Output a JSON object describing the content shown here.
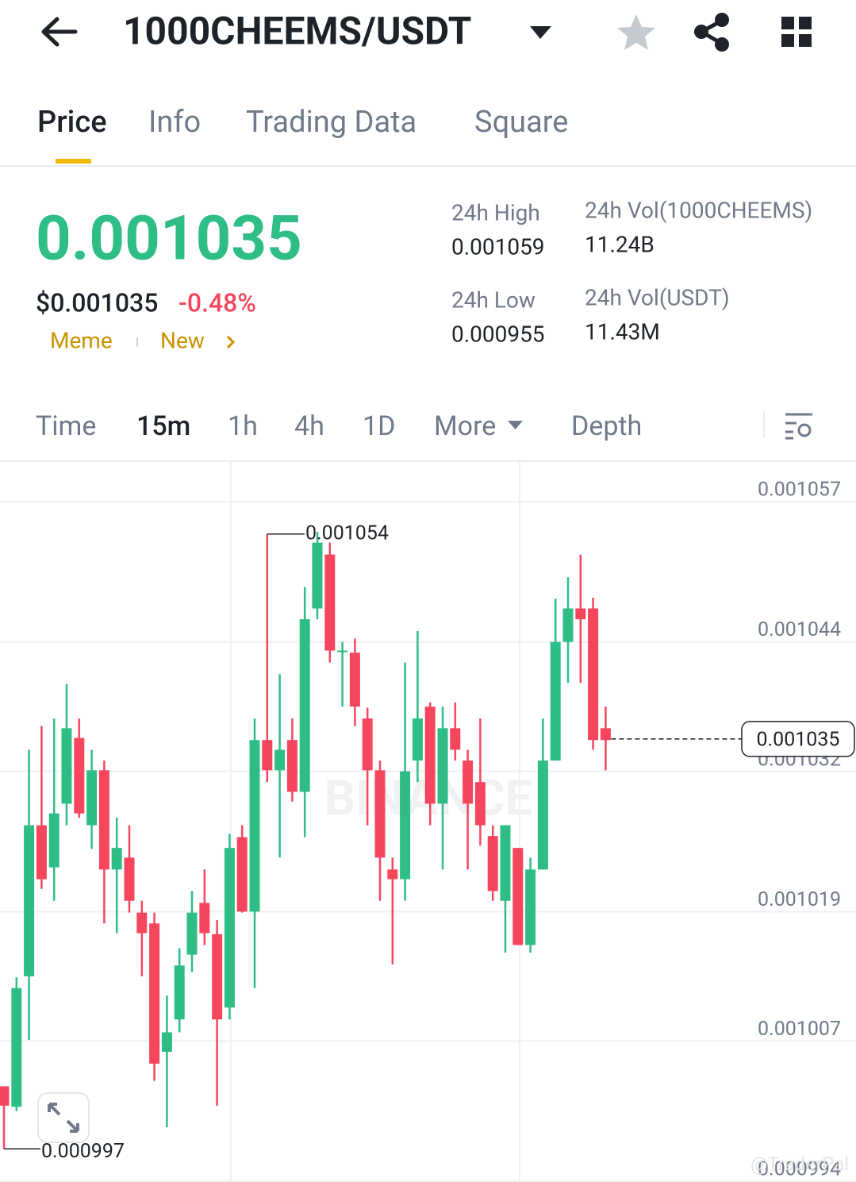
{
  "header": {
    "title": "1000CHEEMS/USDT"
  },
  "tabs": [
    "Price",
    "Info",
    "Trading Data",
    "Square"
  ],
  "summary": {
    "price": "0.001035",
    "usd_price": "$0.001035",
    "change": "-0.48%",
    "tags": [
      "Meme",
      "New"
    ]
  },
  "stats": [
    {
      "label": "24h High",
      "value": "0.001059"
    },
    {
      "label": "24h Vol(1000CHEEMS)",
      "value": "11.24B"
    },
    {
      "label": "24h Low",
      "value": "0.000955"
    },
    {
      "label": "24h Vol(USDT)",
      "value": "11.43M"
    }
  ],
  "intervals": [
    "Time",
    "15m",
    "1h",
    "4h",
    "1D",
    "More",
    "Depth"
  ],
  "chart_data": {
    "type": "candlestick",
    "watermark": "BINANCE",
    "ylim": [
      0.000994,
      0.001057
    ],
    "yticks": [
      0.001057,
      0.001044,
      0.001032,
      0.001019,
      0.001007,
      0.000994
    ],
    "grid": true,
    "up_color": "#2ebd85",
    "down_color": "#f6465d",
    "high_marker": 0.001054,
    "low_marker": 0.000997,
    "last_price": 0.001035,
    "open": [
      0.0010028,
      0.0010009,
      0.001013,
      0.001027,
      0.0010231,
      0.001029,
      0.0010351,
      0.001027,
      0.0010321,
      0.0010229,
      0.001024,
      0.0010189,
      0.0010179,
      0.001006,
      0.001009,
      0.001015,
      0.0010198,
      0.0010169,
      0.0010101,
      0.0010259,
      0.001019,
      0.0010349,
      0.0010321,
      0.0010349,
      0.0010301,
      0.0010471,
      0.0010521,
      0.0010431,
      0.001043,
      0.0010369,
      0.0010321,
      0.0010229,
      0.001022,
      0.001033,
      0.001038,
      0.001029,
      0.001036,
      0.001033,
      0.001031,
      0.001026,
      0.00102,
      0.0010249,
      0.0010159,
      0.0010229,
      0.001033,
      0.001044,
      0.0010471,
      0.0010471,
      0.001036
    ],
    "high": [
      0.0010028,
      0.0010129,
      0.001034,
      0.0010362,
      0.0010369,
      0.0010401,
      0.0010369,
      0.001034,
      0.001033,
      0.0010277,
      0.001027,
      0.00102,
      0.0010189,
      0.0010112,
      0.0010156,
      0.0010209,
      0.0010229,
      0.0010182,
      0.0010262,
      0.001027,
      0.0010369,
      0.001054,
      0.001041,
      0.0010369,
      0.0010491,
      0.0010542,
      0.0010532,
      0.001044,
      0.0010443,
      0.0010379,
      0.001033,
      0.001024,
      0.0010421,
      0.001045,
      0.0010384,
      0.001038,
      0.0010384,
      0.001034,
      0.0010369,
      0.001027,
      0.001027,
      0.0010249,
      0.001024,
      0.0010369,
      0.001048,
      0.00105,
      0.0010521,
      0.0010481,
      0.001038
    ],
    "low": [
      0.000997,
      0.0010005,
      0.0010071,
      0.0010211,
      0.00102,
      0.001027,
      0.0010277,
      0.0010248,
      0.0010179,
      0.001017,
      0.0010189,
      0.001013,
      0.0010033,
      0.000999,
      0.0010078,
      0.0010134,
      0.0010159,
      0.001001,
      0.001009,
      0.0010189,
      0.0010119,
      0.001031,
      0.001024,
      0.0010292,
      0.0010259,
      0.0010461,
      0.0010421,
      0.001038,
      0.0010362,
      0.001027,
      0.00102,
      0.0010141,
      0.00102,
      0.001031,
      0.001027,
      0.0010229,
      0.001033,
      0.0010229,
      0.0010251,
      0.00102,
      0.0010152,
      0.0010159,
      0.0010152,
      0.0010229,
      0.001033,
      0.0010402,
      0.0010402,
      0.001034,
      0.0010321
    ],
    "close": [
      0.001001,
      0.0010119,
      0.001027,
      0.001022,
      0.0010281,
      0.001036,
      0.0010281,
      0.0010321,
      0.0010229,
      0.0010249,
      0.00102,
      0.001017,
      0.0010049,
      0.0010078,
      0.001014,
      0.0010189,
      0.001017,
      0.001009,
      0.0010249,
      0.001019,
      0.0010349,
      0.0010321,
      0.001034,
      0.0010301,
      0.0010461,
      0.0010532,
      0.0010432,
      0.0010432,
      0.001038,
      0.0010321,
      0.001024,
      0.001022,
      0.001032,
      0.0010369,
      0.001029,
      0.001036,
      0.001034,
      0.001029,
      0.001027,
      0.0010209,
      0.001027,
      0.0010159,
      0.0010229,
      0.001033,
      0.001044,
      0.0010471,
      0.0010461,
      0.0010349,
      0.0010349
    ]
  },
  "footer_watermark": "@TraderPal"
}
